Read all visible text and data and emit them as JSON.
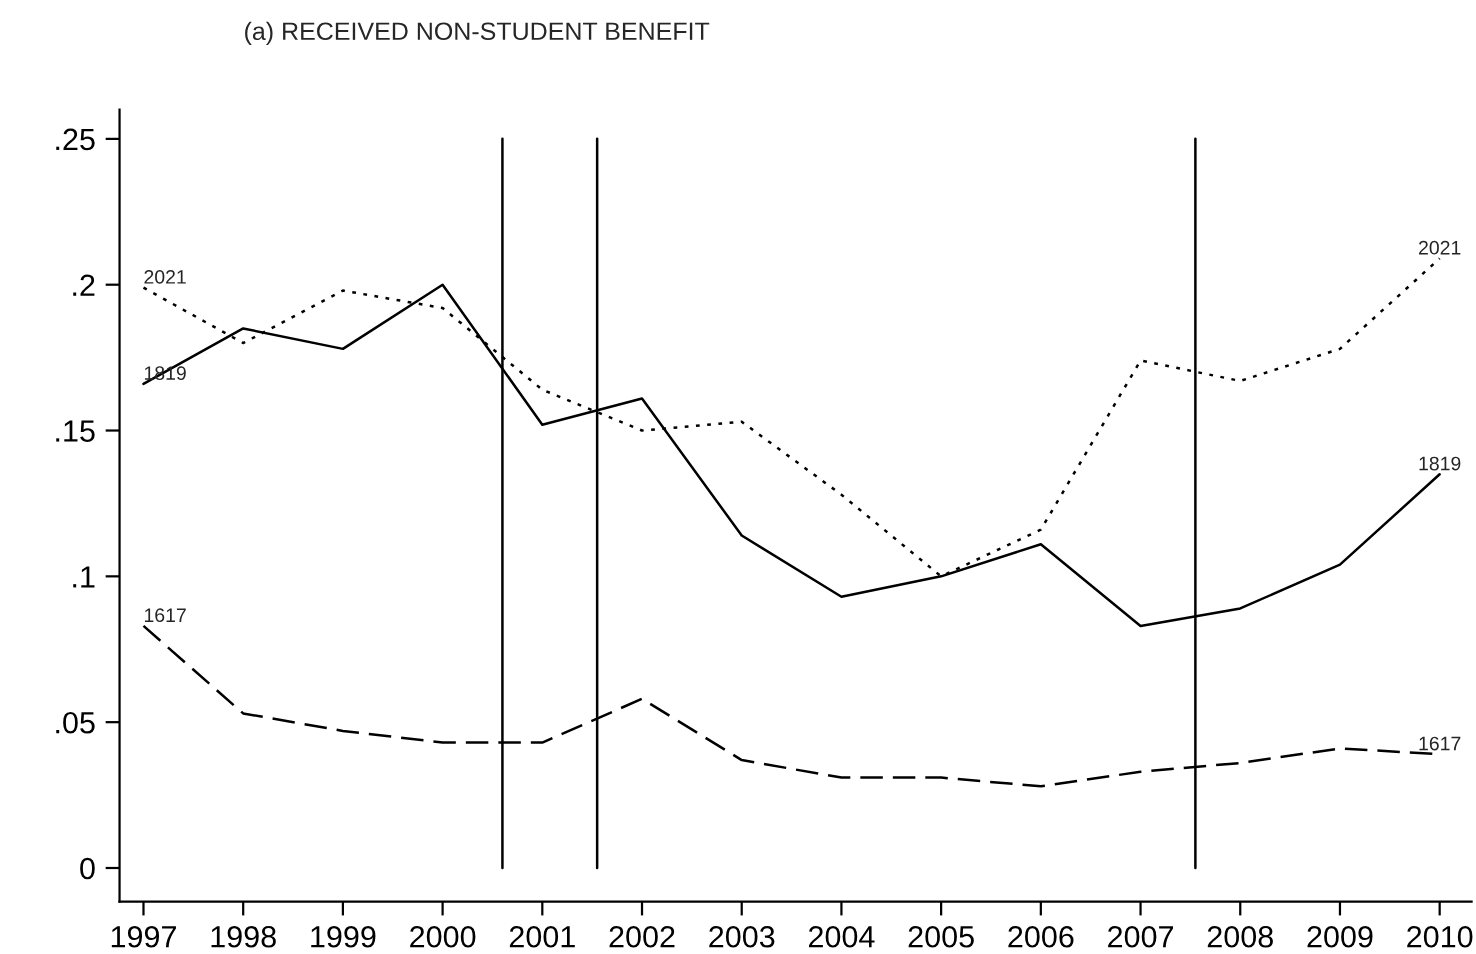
{
  "chart_data": {
    "type": "line",
    "title": "(a) RECEIVED NON-STUDENT BENEFIT",
    "x": [
      1997,
      1998,
      1999,
      2000,
      2001,
      2002,
      2003,
      2004,
      2005,
      2006,
      2007,
      2008,
      2009,
      2010
    ],
    "series": [
      {
        "name": "1617",
        "color": "#000000",
        "line_style": "dashed",
        "values": [
          0.083,
          0.053,
          0.047,
          0.043,
          0.043,
          0.058,
          0.037,
          0.031,
          0.031,
          0.028,
          0.033,
          0.036,
          0.041,
          0.039
        ]
      },
      {
        "name": "1819",
        "color": "#000000",
        "line_style": "solid",
        "values": [
          0.166,
          0.185,
          0.178,
          0.2,
          0.152,
          0.161,
          0.114,
          0.093,
          0.1,
          0.111,
          0.083,
          0.089,
          0.104,
          0.135
        ]
      },
      {
        "name": "2021",
        "color": "#000000",
        "line_style": "dotted",
        "values": [
          0.199,
          0.18,
          0.198,
          0.192,
          0.164,
          0.15,
          0.153,
          0.128,
          0.1,
          0.116,
          0.174,
          0.167,
          0.178,
          0.209
        ]
      }
    ],
    "ref_lines": [
      {
        "axis": "x",
        "value": 2000.6,
        "color": "#000000"
      },
      {
        "axis": "x",
        "value": 2001.55,
        "color": "#000000"
      },
      {
        "axis": "x",
        "value": 2007.55,
        "color": "#000000"
      }
    ],
    "xlim": [
      1996.76,
      2010.32
    ],
    "xticks": [
      1997,
      1998,
      1999,
      2000,
      2001,
      2002,
      2003,
      2004,
      2005,
      2006,
      2007,
      2008,
      2009,
      2010
    ],
    "ylim": [
      -0.0115,
      0.26
    ],
    "yticks": [
      0,
      {
        "value": 0.05,
        "label": ".05"
      },
      {
        "value": 0.1,
        "label": ".1"
      },
      {
        "value": 0.15,
        "label": ".15"
      },
      {
        "value": 0.2,
        "label": ".2"
      },
      {
        "value": 0.25,
        "label": ".25"
      }
    ],
    "grid": false,
    "legend": false,
    "marker": "none"
  }
}
